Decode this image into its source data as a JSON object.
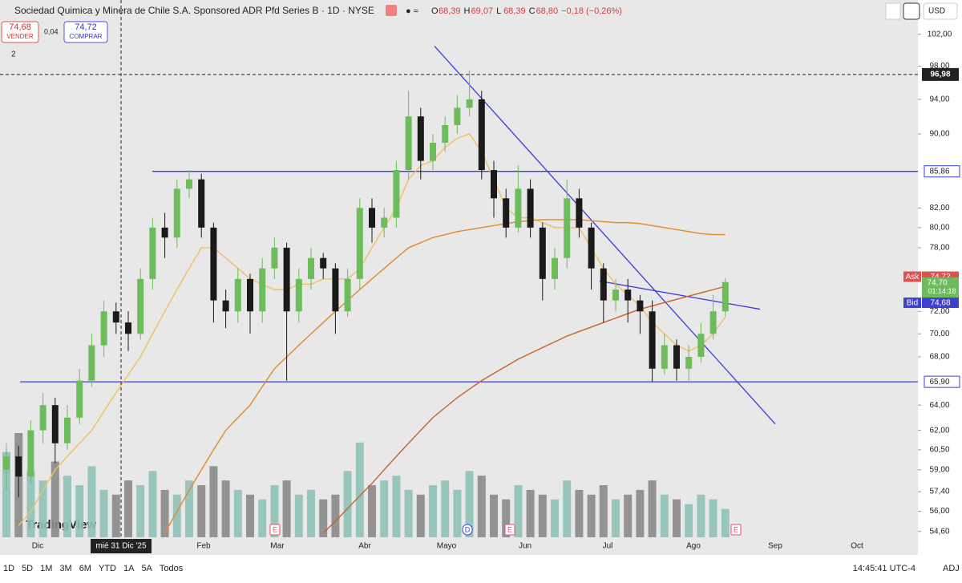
{
  "header": {
    "title": "Sociedad Quimica y Minera de Chile S.A. Sponsored ADR Pfd Series B · 1D · NYSE",
    "ohlc": [
      {
        "key": "O",
        "value": "68,39"
      },
      {
        "key": "H",
        "value": "69,07"
      },
      {
        "key": "L",
        "value": "68,39"
      },
      {
        "key": "C",
        "value": "68,80"
      }
    ],
    "change": "−0,18 (−0,26%)",
    "indicator_count": "2",
    "currency": "USD"
  },
  "trade": {
    "sell_price": "74,68",
    "sell_label": "VENDER",
    "spread": "0,04",
    "buy_price": "74,72",
    "buy_label": "COMPRAR"
  },
  "logo": "TradingView",
  "footer": {
    "ranges": [
      "1D",
      "5D",
      "1M",
      "3M",
      "6M",
      "YTD",
      "1A",
      "5A",
      "Todos"
    ],
    "clock": "14:45:41 UTC-4",
    "adj": "ADJ"
  },
  "chart_data": {
    "type": "candlestick",
    "log_scale": true,
    "ylim": [
      54.2,
      106.5
    ],
    "yticks": [
      {
        "value": 102,
        "label": "102,00"
      },
      {
        "value": 98,
        "label": "98,00"
      },
      {
        "value": 94,
        "label": "94,00"
      },
      {
        "value": 90,
        "label": "90,00"
      },
      {
        "value": 82,
        "label": "82,00"
      },
      {
        "value": 80,
        "label": "80,00"
      },
      {
        "value": 78,
        "label": "78,00"
      },
      {
        "value": 72,
        "label": "72,00"
      },
      {
        "value": 70,
        "label": "70,00"
      },
      {
        "value": 68,
        "label": "68,00"
      },
      {
        "value": 64,
        "label": "64,00"
      },
      {
        "value": 62,
        "label": "62,00"
      },
      {
        "value": 60.5,
        "label": "60,50"
      },
      {
        "value": 59,
        "label": "59,00"
      },
      {
        "value": 57.4,
        "label": "57,40"
      },
      {
        "value": 56,
        "label": "56,00"
      },
      {
        "value": 54.6,
        "label": "54,60"
      }
    ],
    "xticks": [
      "Dic",
      "Feb",
      "Mar",
      "Abr",
      "Mayo",
      "Jun",
      "Jul",
      "Ago",
      "Sep",
      "Oct"
    ],
    "crosshair": {
      "price": {
        "value": 96.98,
        "label": "96,98"
      },
      "date": "mié 31 Dic '25"
    },
    "up_color": "#6dbb5a",
    "down_color": "#1a1a1a",
    "volume_up_color": "#8fc2b8",
    "volume_down_color": "#8a8a8a",
    "open": [
      59,
      60,
      58.5,
      62,
      64,
      61,
      63,
      66,
      69,
      72,
      71,
      70,
      75,
      80,
      79,
      84,
      85,
      80,
      73,
      72,
      75,
      72,
      76,
      78,
      72,
      75,
      77,
      76,
      72,
      75,
      82,
      80,
      81,
      86,
      92,
      87,
      89,
      91,
      93,
      94,
      86,
      83,
      80,
      84,
      80,
      75,
      77,
      83,
      80,
      76,
      73,
      74,
      73,
      72,
      67,
      69,
      67,
      68,
      70,
      72
    ],
    "high": [
      61,
      60.8,
      62.8,
      65,
      64.6,
      64,
      67,
      70,
      73,
      72.8,
      72,
      76,
      81,
      81.5,
      85,
      86,
      85.6,
      80.5,
      74,
      76,
      75.5,
      77,
      79,
      78.5,
      76,
      78,
      77.5,
      76.5,
      76,
      83,
      83,
      82,
      87,
      95,
      93,
      90,
      92,
      94.5,
      97.5,
      95,
      87,
      84,
      86.5,
      85,
      80.5,
      78,
      85,
      84,
      80.5,
      76.5,
      75,
      75,
      73.5,
      73,
      70,
      69.5,
      69,
      71,
      73.5,
      75.1
    ],
    "low": [
      57.5,
      57,
      58,
      61,
      59.5,
      60.5,
      62.5,
      65.5,
      68,
      70,
      68.5,
      69.5,
      74,
      77,
      78,
      83,
      79,
      71,
      70.5,
      71,
      70,
      71,
      75,
      66,
      71,
      74,
      75,
      70,
      71.5,
      74,
      78.5,
      79,
      80,
      85,
      85,
      86,
      88,
      90,
      92,
      85,
      81,
      79,
      79.5,
      79,
      73,
      74,
      76,
      79,
      74,
      71,
      72,
      71,
      70,
      65.9,
      66.5,
      66,
      66,
      67.5,
      69.5,
      71.5
    ],
    "close": [
      60,
      58.5,
      62,
      64,
      61,
      63,
      66,
      69,
      72,
      71,
      70,
      75,
      80,
      79,
      84,
      85,
      80,
      73,
      72,
      75,
      72,
      76,
      78,
      72,
      75,
      77,
      76,
      72,
      75,
      82,
      80,
      81,
      86,
      92,
      87,
      89,
      91,
      93,
      94,
      86,
      83,
      80,
      84,
      80,
      75,
      77,
      83,
      80,
      76,
      73,
      74,
      73,
      72,
      67,
      69,
      67,
      68,
      70,
      72,
      74.7
    ],
    "volume": [
      90,
      110,
      70,
      60,
      80,
      65,
      55,
      75,
      50,
      45,
      60,
      55,
      70,
      50,
      45,
      60,
      55,
      75,
      60,
      50,
      45,
      40,
      55,
      60,
      45,
      50,
      40,
      45,
      70,
      100,
      55,
      60,
      65,
      50,
      45,
      55,
      60,
      50,
      70,
      65,
      45,
      40,
      55,
      50,
      45,
      40,
      60,
      50,
      45,
      55,
      40,
      45,
      50,
      60,
      45,
      40,
      35,
      45,
      40,
      30
    ],
    "moving_averages": [
      {
        "color": "#f0c060",
        "values": [
          null,
          55,
          56,
          57.5,
          59,
          60,
          61,
          62,
          63.5,
          65,
          66.5,
          68,
          70,
          72,
          74,
          76,
          78,
          78,
          77,
          76,
          75,
          74.5,
          74,
          74,
          74.5,
          74.5,
          75,
          75,
          75,
          76,
          78,
          80,
          82,
          85,
          86.5,
          87,
          88.5,
          89.5,
          90,
          88,
          85,
          82,
          81,
          81,
          80.5,
          80,
          80,
          80,
          78,
          76,
          74.5,
          73.5,
          72.5,
          71,
          70,
          69,
          68.5,
          69,
          70,
          71.5
        ]
      },
      {
        "color": "#e08a2a",
        "values": [
          null,
          null,
          null,
          null,
          null,
          null,
          null,
          null,
          null,
          null,
          null,
          null,
          null,
          54.5,
          56,
          57.5,
          59,
          60.5,
          62,
          63,
          64,
          65.5,
          67,
          68,
          69,
          70,
          71,
          72,
          73,
          74,
          75,
          76,
          77,
          78,
          78.5,
          79,
          79.3,
          79.6,
          79.8,
          80,
          80.2,
          80.4,
          80.6,
          80.7,
          80.8,
          80.8,
          80.8,
          80.8,
          80.7,
          80.6,
          80.5,
          80.5,
          80.4,
          80.2,
          80,
          79.8,
          79.6,
          79.4,
          79.3,
          79.3
        ]
      },
      {
        "color": "#c8602a",
        "values": [
          null,
          null,
          null,
          null,
          null,
          null,
          null,
          null,
          null,
          null,
          null,
          null,
          null,
          null,
          null,
          null,
          null,
          null,
          null,
          null,
          null,
          null,
          null,
          null,
          null,
          null,
          54.5,
          55.3,
          56.2,
          57.1,
          58,
          59,
          60,
          61,
          62,
          63,
          63.8,
          64.6,
          65.3,
          66,
          66.6,
          67.2,
          67.8,
          68.3,
          68.8,
          69.3,
          69.8,
          70.2,
          70.6,
          71,
          71.4,
          71.8,
          72.2,
          72.5,
          72.8,
          73.1,
          73.4,
          73.7,
          74,
          74.3
        ]
      }
    ],
    "levels": [
      {
        "value": 85.86,
        "label": "85,86"
      },
      {
        "value": 65.9,
        "label": "65,90"
      }
    ],
    "trendlines": [
      {
        "start": 100.5,
        "end": 62.5
      },
      {
        "start": 74.8,
        "end": 72.2
      }
    ],
    "events": [
      "E",
      "D",
      "E",
      "E"
    ],
    "quotes": {
      "ask_name": "Ask",
      "ask": {
        "value": 74.72,
        "label": "74,72"
      },
      "last": {
        "value": 74.7,
        "label": "74,70"
      },
      "countdown": "01:14:18",
      "bid_name": "Bid",
      "bid": {
        "value": 74.68,
        "label": "74,68"
      }
    }
  }
}
